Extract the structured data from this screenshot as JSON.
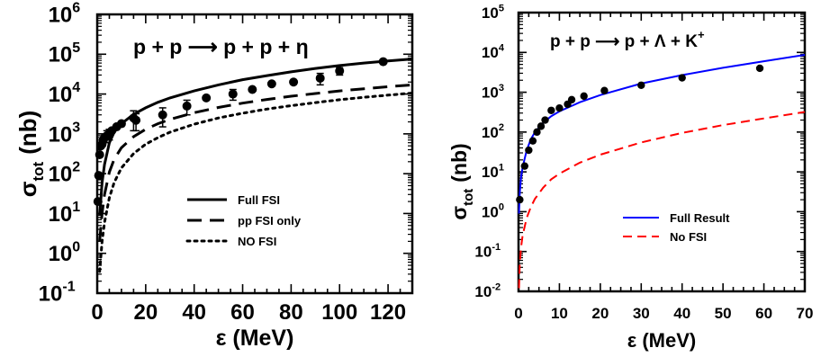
{
  "chart_data": [
    {
      "type": "line",
      "title": "p + p ⟶ p + p + η",
      "xlabel": "ε (MeV)",
      "ylabel_main": "σ",
      "ylabel_sub": "tot",
      "ylabel_unit": "(nb)",
      "x_scale": "linear",
      "y_scale": "log",
      "xlim": [
        0,
        130
      ],
      "ylim": [
        0.1,
        1000000
      ],
      "x_ticks": [
        0,
        20,
        40,
        60,
        80,
        100,
        120
      ],
      "x_tick_labels": [
        "0",
        "20",
        "40",
        "60",
        "80",
        "100",
        "120"
      ],
      "y_ticks": [
        0.1,
        1,
        10,
        100,
        1000,
        10000,
        100000,
        1000000
      ],
      "y_tick_labels": [
        {
          "base": "10",
          "exp": "-1"
        },
        {
          "base": "10",
          "exp": "0"
        },
        {
          "base": "10",
          "exp": "1"
        },
        {
          "base": "10",
          "exp": "2"
        },
        {
          "base": "10",
          "exp": "3"
        },
        {
          "base": "10",
          "exp": "4"
        },
        {
          "base": "10",
          "exp": "5"
        },
        {
          "base": "10",
          "exp": "6"
        }
      ],
      "grid": false,
      "legend_position": "bottom-right",
      "series": [
        {
          "name": "Full FSI",
          "style": "solid",
          "color": "#000000",
          "x": [
            1,
            2,
            3,
            5,
            7,
            10,
            15,
            20,
            25,
            30,
            40,
            50,
            60,
            70,
            80,
            90,
            100,
            110,
            120,
            130
          ],
          "y": [
            9,
            60,
            170,
            600,
            1100,
            1800,
            3100,
            4500,
            6200,
            8000,
            12000,
            17000,
            23000,
            29000,
            36000,
            44000,
            52000,
            60000,
            68000,
            76000
          ]
        },
        {
          "name": "pp FSI only",
          "style": "dashed",
          "color": "#000000",
          "x": [
            1,
            2,
            3,
            5,
            7,
            10,
            15,
            20,
            25,
            30,
            40,
            50,
            60,
            70,
            80,
            90,
            100,
            110,
            120,
            130
          ],
          "y": [
            2,
            10,
            30,
            110,
            230,
            450,
            850,
            1300,
            1800,
            2300,
            3400,
            4600,
            5900,
            7300,
            8800,
            10300,
            12000,
            13600,
            15300,
            17000
          ]
        },
        {
          "name": "NO FSI",
          "style": "dotted",
          "color": "#000000",
          "x": [
            1,
            2,
            3,
            5,
            7,
            10,
            15,
            20,
            25,
            30,
            40,
            50,
            60,
            70,
            80,
            90,
            100,
            110,
            120,
            130
          ],
          "y": [
            0.35,
            2,
            6,
            25,
            60,
            140,
            320,
            550,
            800,
            1100,
            1750,
            2500,
            3300,
            4200,
            5100,
            6100,
            7200,
            8300,
            9400,
            10600
          ]
        }
      ],
      "points": {
        "x": [
          0.3,
          0.6,
          1,
          1.5,
          2,
          2.5,
          3,
          4,
          5,
          6,
          8,
          10,
          15,
          16,
          27,
          37,
          45,
          56,
          64,
          72,
          81,
          92,
          100,
          118
        ],
        "y": [
          20,
          90,
          300,
          500,
          550,
          700,
          800,
          900,
          1000,
          1200,
          1500,
          1800,
          2500,
          2200,
          3000,
          5000,
          8000,
          10000,
          13000,
          18000,
          20000,
          25000,
          38000,
          65000
        ],
        "err": [
          0,
          0,
          0,
          0,
          0,
          0,
          0,
          300,
          300,
          0,
          0,
          0,
          1300,
          1000,
          1500,
          2000,
          0,
          3000,
          0,
          0,
          0,
          8000,
          8000,
          0
        ]
      }
    },
    {
      "type": "line",
      "title_left": "p + p ⟶ p + Λ + K",
      "title_sup": "+",
      "xlabel": "ε (MeV)",
      "ylabel_main": "σ",
      "ylabel_sub": "tot",
      "ylabel_unit": "(nb)",
      "x_scale": "linear",
      "y_scale": "log",
      "xlim": [
        0,
        70
      ],
      "ylim": [
        0.01,
        100000
      ],
      "x_ticks": [
        0,
        10,
        20,
        30,
        40,
        50,
        60,
        70
      ],
      "x_tick_labels": [
        "0",
        "10",
        "20",
        "30",
        "40",
        "50",
        "60",
        "70"
      ],
      "y_ticks": [
        0.01,
        0.1,
        1,
        10,
        100,
        1000,
        10000,
        100000
      ],
      "y_tick_labels": [
        {
          "base": "10",
          "exp": "-2"
        },
        {
          "base": "10",
          "exp": "-1"
        },
        {
          "base": "10",
          "exp": "0"
        },
        {
          "base": "10",
          "exp": "1"
        },
        {
          "base": "10",
          "exp": "2"
        },
        {
          "base": "10",
          "exp": "3"
        },
        {
          "base": "10",
          "exp": "4"
        },
        {
          "base": "10",
          "exp": "5"
        }
      ],
      "grid": false,
      "legend_position": "bottom-right",
      "series": [
        {
          "name": "Full Result",
          "style": "solid",
          "color": "#0000ff",
          "x": [
            0.1,
            0.3,
            0.6,
            1,
            2,
            3,
            4,
            6,
            8,
            10,
            15,
            20,
            30,
            40,
            50,
            60,
            70
          ],
          "y": [
            0.9,
            3,
            7,
            13,
            35,
            65,
            100,
            170,
            250,
            330,
            560,
            850,
            1650,
            2700,
            4100,
            6000,
            8700
          ]
        },
        {
          "name": "No FSI",
          "style": "dashed",
          "color": "#ff0000",
          "x": [
            0.1,
            0.3,
            0.6,
            1,
            2,
            3,
            4,
            6,
            8,
            10,
            15,
            20,
            30,
            40,
            50,
            60,
            70
          ],
          "y": [
            0.012,
            0.05,
            0.12,
            0.25,
            0.7,
            1.3,
            2.1,
            4,
            6.5,
            9,
            17,
            27,
            55,
            95,
            150,
            220,
            320
          ]
        }
      ],
      "points": {
        "x": [
          0.3,
          1.5,
          2.5,
          3.5,
          4.5,
          5.5,
          6.5,
          8,
          10,
          12,
          13,
          16,
          21,
          30,
          40,
          59
        ],
        "y": [
          2,
          14,
          35,
          60,
          100,
          140,
          200,
          350,
          400,
          500,
          650,
          800,
          1100,
          1500,
          2300,
          4000
        ]
      }
    }
  ]
}
